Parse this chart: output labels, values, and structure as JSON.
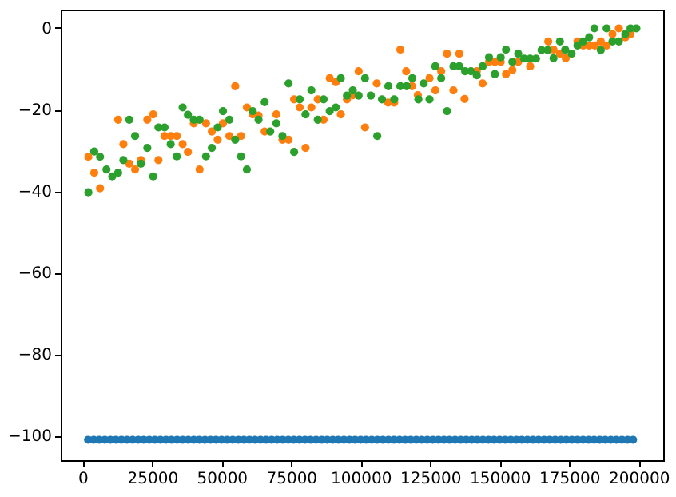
{
  "chart_data": {
    "type": "scatter",
    "marker": "circle",
    "xlim": [
      -7850,
      208850
    ],
    "ylim": [
      -106,
      4.5
    ],
    "xticks": [
      0,
      25000,
      50000,
      75000,
      100000,
      125000,
      150000,
      175000,
      200000
    ],
    "yticks": [
      -100,
      -80,
      -60,
      -40,
      -20,
      0
    ],
    "series": [
      {
        "color": "#1f77b4",
        "x": [
          2000,
          4000,
          6000,
          8000,
          10000,
          12000,
          14000,
          16000,
          18000,
          20000,
          22000,
          24000,
          26000,
          28000,
          30000,
          32000,
          34000,
          36000,
          38000,
          40000,
          42000,
          44000,
          46000,
          48000,
          50000,
          52000,
          54000,
          56000,
          58000,
          60000,
          62000,
          64000,
          66000,
          68000,
          70000,
          72000,
          74000,
          76000,
          78000,
          80000,
          82000,
          84000,
          86000,
          88000,
          90000,
          92000,
          94000,
          96000,
          98000,
          100000,
          102000,
          104000,
          106000,
          108000,
          110000,
          112000,
          114000,
          116000,
          118000,
          120000,
          122000,
          124000,
          126000,
          128000,
          130000,
          132000,
          134000,
          136000,
          138000,
          140000,
          142000,
          144000,
          146000,
          148000,
          150000,
          152000,
          154000,
          156000,
          158000,
          160000,
          162000,
          164000,
          166000,
          168000,
          170000,
          172000,
          174000,
          176000,
          178000,
          180000,
          182000,
          184000,
          186000,
          188000,
          190000,
          192000,
          194000,
          196000,
          198000
        ],
        "values": [
          -101,
          -101,
          -101,
          -101,
          -101,
          -101,
          -101,
          -101,
          -101,
          -101,
          -101,
          -101,
          -101,
          -101,
          -101,
          -101,
          -101,
          -101,
          -101,
          -101,
          -101,
          -101,
          -101,
          -101,
          -101,
          -101,
          -101,
          -101,
          -101,
          -101,
          -101,
          -101,
          -101,
          -101,
          -101,
          -101,
          -101,
          -101,
          -101,
          -101,
          -101,
          -101,
          -101,
          -101,
          -101,
          -101,
          -101,
          -101,
          -101,
          -101,
          -101,
          -101,
          -101,
          -101,
          -101,
          -101,
          -101,
          -101,
          -101,
          -101,
          -101,
          -101,
          -101,
          -101,
          -101,
          -101,
          -101,
          -101,
          -101,
          -101,
          -101,
          -101,
          -101,
          -101,
          -101,
          -101,
          -101,
          -101,
          -101,
          -101,
          -101,
          -101,
          -101,
          -101,
          -101,
          -101,
          -101,
          -101,
          -101,
          -101,
          -101,
          -101,
          -101,
          -101,
          -101,
          -101,
          -101,
          -101,
          -101
        ]
      },
      {
        "color": "#ff7f0e",
        "x": [
          2100,
          4200,
          6300,
          12800,
          14700,
          16800,
          18900,
          21000,
          23300,
          25400,
          27300,
          29500,
          31700,
          33900,
          36000,
          37900,
          40000,
          42100,
          44400,
          46500,
          48600,
          50500,
          52800,
          54900,
          57000,
          59100,
          61200,
          63300,
          65500,
          69700,
          71900,
          74100,
          76100,
          78100,
          80200,
          82300,
          84600,
          86700,
          88900,
          91100,
          92900,
          95100,
          97200,
          99300,
          101600,
          105800,
          109900,
          112100,
          114300,
          116400,
          118500,
          120600,
          124800,
          126900,
          129000,
          131100,
          133400,
          135500,
          137400,
          141800,
          143900,
          146200,
          148300,
          150400,
          152300,
          154600,
          156700,
          161000,
          167500,
          169400,
          171700,
          173800,
          178000,
          180100,
          182200,
          184300,
          186400,
          188500,
          190600,
          192900,
          195200,
          197100
        ],
        "values": [
          -31.6,
          -35.5,
          -39.3,
          -22.5,
          -28.5,
          -33.3,
          -34.7,
          -32.4,
          -22.5,
          -21.2,
          -32.4,
          -26.5,
          -26.5,
          -26.5,
          -28.5,
          -30.4,
          -23.4,
          -34.7,
          -23.4,
          -25.4,
          -27.4,
          -23.4,
          -26.5,
          -14.3,
          -26.5,
          -19.5,
          -21.2,
          -21.5,
          -25.4,
          -21.2,
          -27.4,
          -27.4,
          -17.5,
          -19.5,
          -29.4,
          -19.5,
          -17.5,
          -22.5,
          -12.3,
          -13.3,
          -21.2,
          -17.5,
          -16.5,
          -10.6,
          -24.4,
          -13.6,
          -18.3,
          -18.3,
          -5.3,
          -10.6,
          -14.3,
          -16.5,
          -12.3,
          -15.3,
          -10.6,
          -6.3,
          -15.3,
          -6.3,
          -17.4,
          -10.6,
          -13.6,
          -8.3,
          -8.3,
          -8.3,
          -11.3,
          -10.3,
          -8.3,
          -9.4,
          -3.3,
          -5.3,
          -6.3,
          -7.4,
          -3.3,
          -4.3,
          -4.3,
          -4.3,
          -3.3,
          -4.3,
          -1.5,
          -0.1,
          -2.3,
          -1.5
        ]
      },
      {
        "color": "#2ca02c",
        "x": [
          2100,
          4200,
          6300,
          8600,
          10700,
          12800,
          14700,
          16800,
          18900,
          21000,
          23300,
          25400,
          27300,
          29500,
          31700,
          33900,
          36000,
          37900,
          40000,
          42100,
          44400,
          46500,
          48600,
          50500,
          52800,
          54900,
          57000,
          59100,
          61200,
          63300,
          65500,
          67500,
          69700,
          71900,
          74100,
          76100,
          78100,
          80200,
          82300,
          84600,
          86700,
          88900,
          91100,
          92900,
          95100,
          97200,
          99300,
          101600,
          103700,
          106000,
          107700,
          110000,
          112100,
          114300,
          116600,
          118600,
          120800,
          122700,
          124800,
          126900,
          129000,
          131100,
          133400,
          135500,
          137600,
          139700,
          141800,
          143900,
          146200,
          148300,
          150400,
          152300,
          154600,
          156700,
          158800,
          161000,
          163100,
          165100,
          167300,
          169400,
          171700,
          173600,
          175900,
          178000,
          180100,
          182200,
          184100,
          186400,
          188500,
          190600,
          192900,
          195200,
          197100,
          199200
        ],
        "values": [
          -40.3,
          -30.3,
          -31.6,
          -34.7,
          -36.4,
          -35.5,
          -32.4,
          -22.5,
          -26.5,
          -33.3,
          -29.4,
          -36.4,
          -24.4,
          -24.4,
          -28.5,
          -31.5,
          -19.5,
          -21.3,
          -22.5,
          -22.5,
          -31.5,
          -29.4,
          -24.4,
          -20.4,
          -22.5,
          -27.4,
          -31.5,
          -34.7,
          -20.4,
          -22.5,
          -18.2,
          -25.4,
          -23.4,
          -26.5,
          -13.6,
          -30.4,
          -17.5,
          -21.2,
          -15.3,
          -22.5,
          -17.5,
          -20.4,
          -19.5,
          -12.3,
          -16.6,
          -15.3,
          -16.6,
          -12.3,
          -16.6,
          -26.5,
          -17.5,
          -14.3,
          -17.5,
          -14.3,
          -14.3,
          -12.3,
          -17.5,
          -13.6,
          -17.5,
          -9.4,
          -12.3,
          -20.4,
          -9.4,
          -9.4,
          -10.6,
          -10.6,
          -11.6,
          -9.4,
          -7.2,
          -11.3,
          -7.2,
          -5.3,
          -8.3,
          -6.3,
          -7.5,
          -7.5,
          -7.5,
          -5.4,
          -5.4,
          -7.4,
          -3.3,
          -5.3,
          -6.3,
          -4.3,
          -3.3,
          -2.3,
          -0.1,
          -5.4,
          -0.1,
          -3.3,
          -3.3,
          -1.5,
          -0.1,
          -0.1
        ]
      }
    ]
  }
}
